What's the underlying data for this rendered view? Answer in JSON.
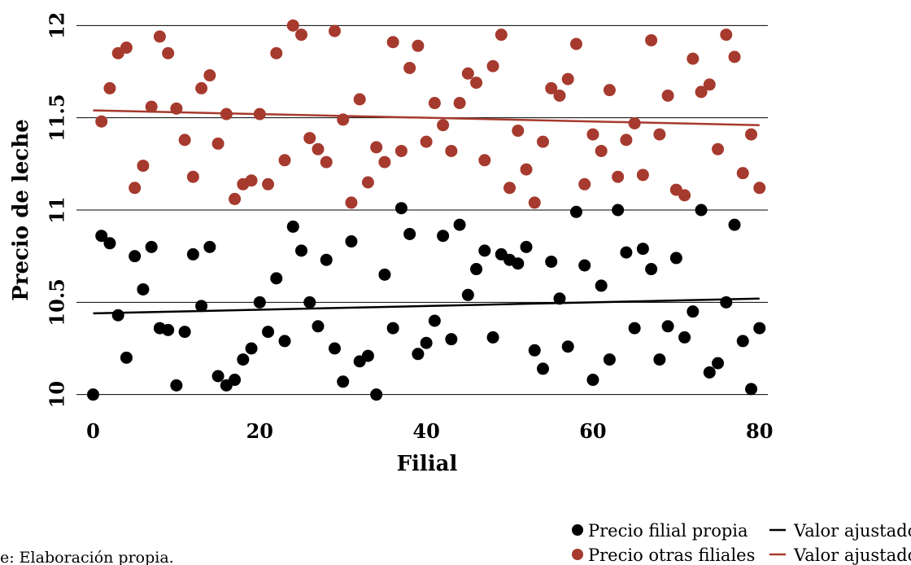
{
  "chart_data": {
    "type": "scatter",
    "xlabel": "Filial",
    "ylabel": "Precio de leche",
    "xlim": [
      -2,
      81
    ],
    "ylim": [
      9.95,
      12.05
    ],
    "xticks": [
      0,
      20,
      40,
      60,
      80
    ],
    "yticks": [
      10,
      10.5,
      11,
      11.5,
      12
    ],
    "xtick_labels": [
      "0",
      "20",
      "40",
      "60",
      "80"
    ],
    "ytick_labels": [
      "10",
      "10.5",
      "11",
      "11.5",
      "12"
    ],
    "grid": "horizontal",
    "legend_position": "bottom-right",
    "series": [
      {
        "name": "Precio filial propia",
        "kind": "points",
        "color": "#000000",
        "x": [
          0,
          1,
          2,
          3,
          4,
          5,
          6,
          7,
          8,
          9,
          10,
          11,
          12,
          13,
          14,
          15,
          16,
          17,
          18,
          19,
          20,
          21,
          22,
          23,
          24,
          25,
          26,
          27,
          28,
          29,
          30,
          31,
          32,
          33,
          34,
          35,
          36,
          37,
          38,
          39,
          40,
          41,
          42,
          43,
          44,
          45,
          46,
          47,
          48,
          49,
          50,
          51,
          52,
          53,
          54,
          55,
          56,
          57,
          58,
          59,
          60,
          61,
          62,
          63,
          64,
          65,
          66,
          67,
          68,
          69,
          70,
          71,
          72,
          73,
          74,
          75,
          76,
          77,
          78,
          79,
          80
        ],
        "y": [
          10.0,
          10.86,
          10.82,
          10.43,
          10.2,
          10.75,
          10.57,
          10.8,
          10.36,
          10.35,
          10.05,
          10.34,
          10.76,
          10.48,
          10.8,
          10.1,
          10.05,
          10.08,
          10.19,
          10.25,
          10.5,
          10.34,
          10.63,
          10.29,
          10.91,
          10.78,
          10.5,
          10.37,
          10.73,
          10.25,
          10.07,
          10.83,
          10.18,
          10.21,
          10.0,
          10.65,
          10.36,
          11.01,
          10.87,
          10.22,
          10.28,
          10.4,
          10.86,
          10.3,
          10.92,
          10.54,
          10.68,
          10.78,
          10.31,
          10.76,
          10.73,
          10.71,
          10.8,
          10.24,
          10.14,
          10.72,
          10.52,
          10.26,
          10.99,
          10.7,
          10.08,
          10.59,
          10.19,
          11.0,
          10.77,
          10.36,
          10.79,
          10.68,
          10.19,
          10.37,
          10.74,
          10.31,
          10.45,
          11.0,
          10.12,
          10.17,
          10.5,
          10.92,
          10.29,
          10.03,
          10.36
        ]
      },
      {
        "name": "Precio otras filiales",
        "kind": "points",
        "color": "#a63a2e",
        "x": [
          1,
          2,
          3,
          4,
          5,
          6,
          7,
          8,
          9,
          10,
          11,
          12,
          13,
          14,
          15,
          16,
          17,
          18,
          19,
          20,
          21,
          22,
          23,
          24,
          25,
          26,
          27,
          28,
          29,
          30,
          31,
          32,
          33,
          34,
          35,
          36,
          37,
          38,
          39,
          40,
          41,
          42,
          43,
          44,
          45,
          46,
          47,
          48,
          49,
          50,
          51,
          52,
          53,
          54,
          55,
          56,
          57,
          58,
          59,
          60,
          61,
          62,
          63,
          64,
          65,
          66,
          67,
          68,
          69,
          70,
          71,
          72,
          73,
          74,
          75,
          76,
          77,
          78,
          79,
          80
        ],
        "y": [
          11.48,
          11.66,
          11.85,
          11.88,
          11.12,
          11.24,
          11.56,
          11.94,
          11.85,
          11.55,
          11.38,
          11.18,
          11.66,
          11.73,
          11.36,
          11.52,
          11.06,
          11.14,
          11.16,
          11.52,
          11.14,
          11.85,
          11.27,
          12.0,
          11.95,
          11.39,
          11.33,
          11.26,
          11.97,
          11.49,
          11.04,
          11.6,
          11.15,
          11.34,
          11.26,
          11.91,
          11.32,
          11.77,
          11.89,
          11.37,
          11.58,
          11.46,
          11.32,
          11.58,
          11.74,
          11.69,
          11.27,
          11.78,
          11.95,
          11.12,
          11.43,
          11.22,
          11.04,
          11.37,
          11.66,
          11.62,
          11.71,
          11.9,
          11.14,
          11.41,
          11.32,
          11.65,
          11.18,
          11.38,
          11.47,
          11.19,
          11.92,
          11.41,
          11.62,
          11.11,
          11.08,
          11.82,
          11.64,
          11.68,
          11.33,
          11.95,
          11.83,
          11.2,
          11.41,
          11.12
        ]
      },
      {
        "name": "Valor ajustado",
        "kind": "line",
        "color": "#000000",
        "x": [
          0,
          80
        ],
        "y": [
          10.44,
          10.52
        ]
      },
      {
        "name": "Valor ajustado",
        "kind": "line",
        "color": "#a63a2e",
        "x": [
          0,
          80
        ],
        "y": [
          11.54,
          11.46
        ]
      }
    ]
  },
  "legend": {
    "items": [
      {
        "label": "Precio filial propia",
        "symbol": "dot",
        "color": "#000000"
      },
      {
        "label": "Precio otras filiales",
        "symbol": "dot",
        "color": "#a63a2e"
      },
      {
        "label": "Valor ajustado",
        "symbol": "line",
        "color": "#000000"
      },
      {
        "label": "Valor ajustado",
        "symbol": "line",
        "color": "#a63a2e"
      }
    ]
  },
  "source_note": "e: Elaboración propia."
}
